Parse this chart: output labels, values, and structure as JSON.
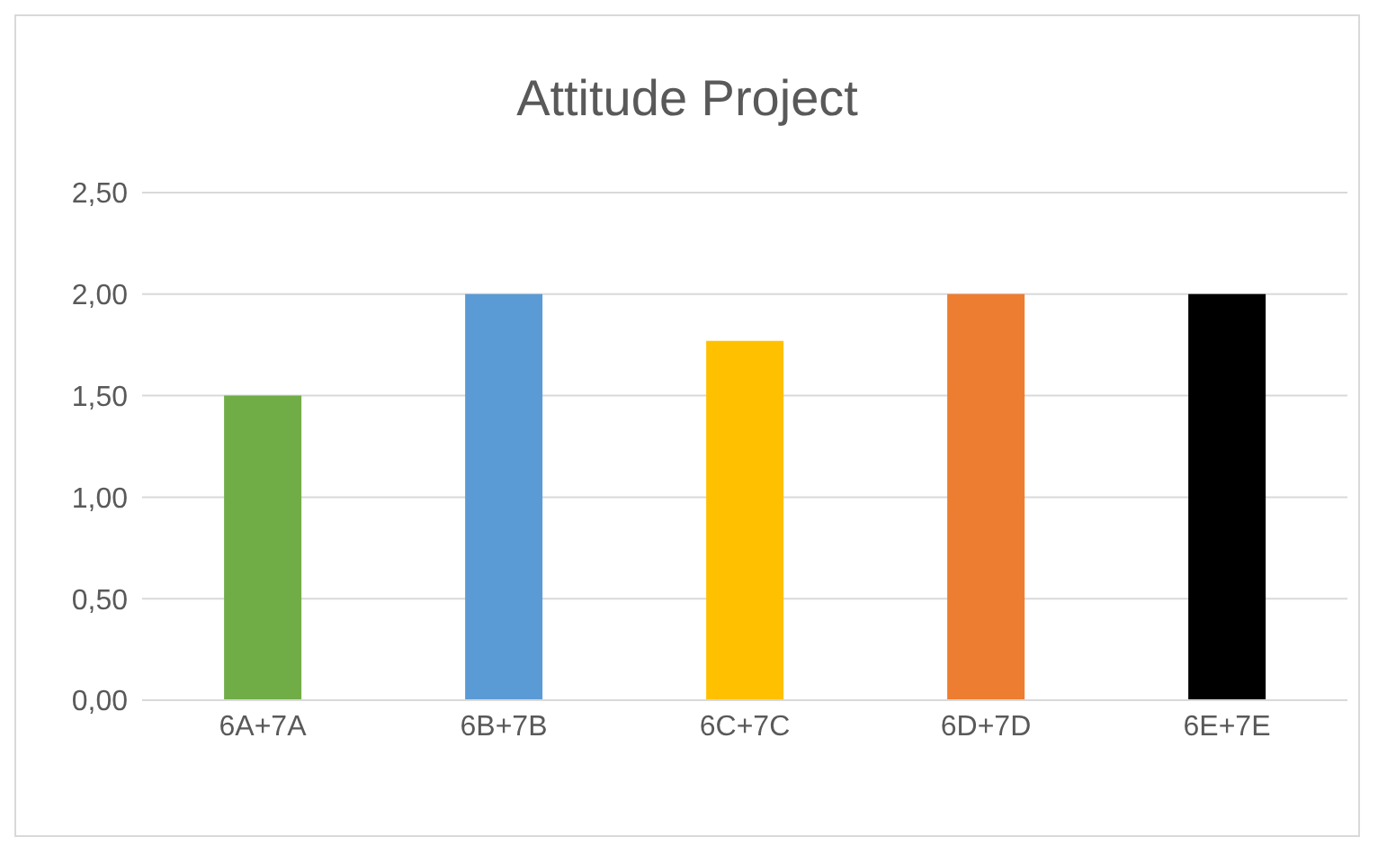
{
  "chart_data": {
    "type": "bar",
    "title": "Attitude Project",
    "categories": [
      "6A+7A",
      "6B+7B",
      "6C+7C",
      "6D+7D",
      "6E+7E"
    ],
    "values": [
      1.5,
      2,
      1.77,
      2,
      2
    ],
    "colors": [
      "#70ad47",
      "#5b9bd5",
      "#ffc000",
      "#ed7d31",
      "#000000"
    ],
    "ylim": [
      0,
      2.5
    ],
    "yticks": [
      {
        "value": 0,
        "label": "0,00"
      },
      {
        "value": 0.5,
        "label": "0,50"
      },
      {
        "value": 1,
        "label": "1,00"
      },
      {
        "value": 1.5,
        "label": "1,50"
      },
      {
        "value": 2,
        "label": "2,00"
      },
      {
        "value": 2.5,
        "label": "2,50"
      }
    ],
    "grid": "y"
  }
}
